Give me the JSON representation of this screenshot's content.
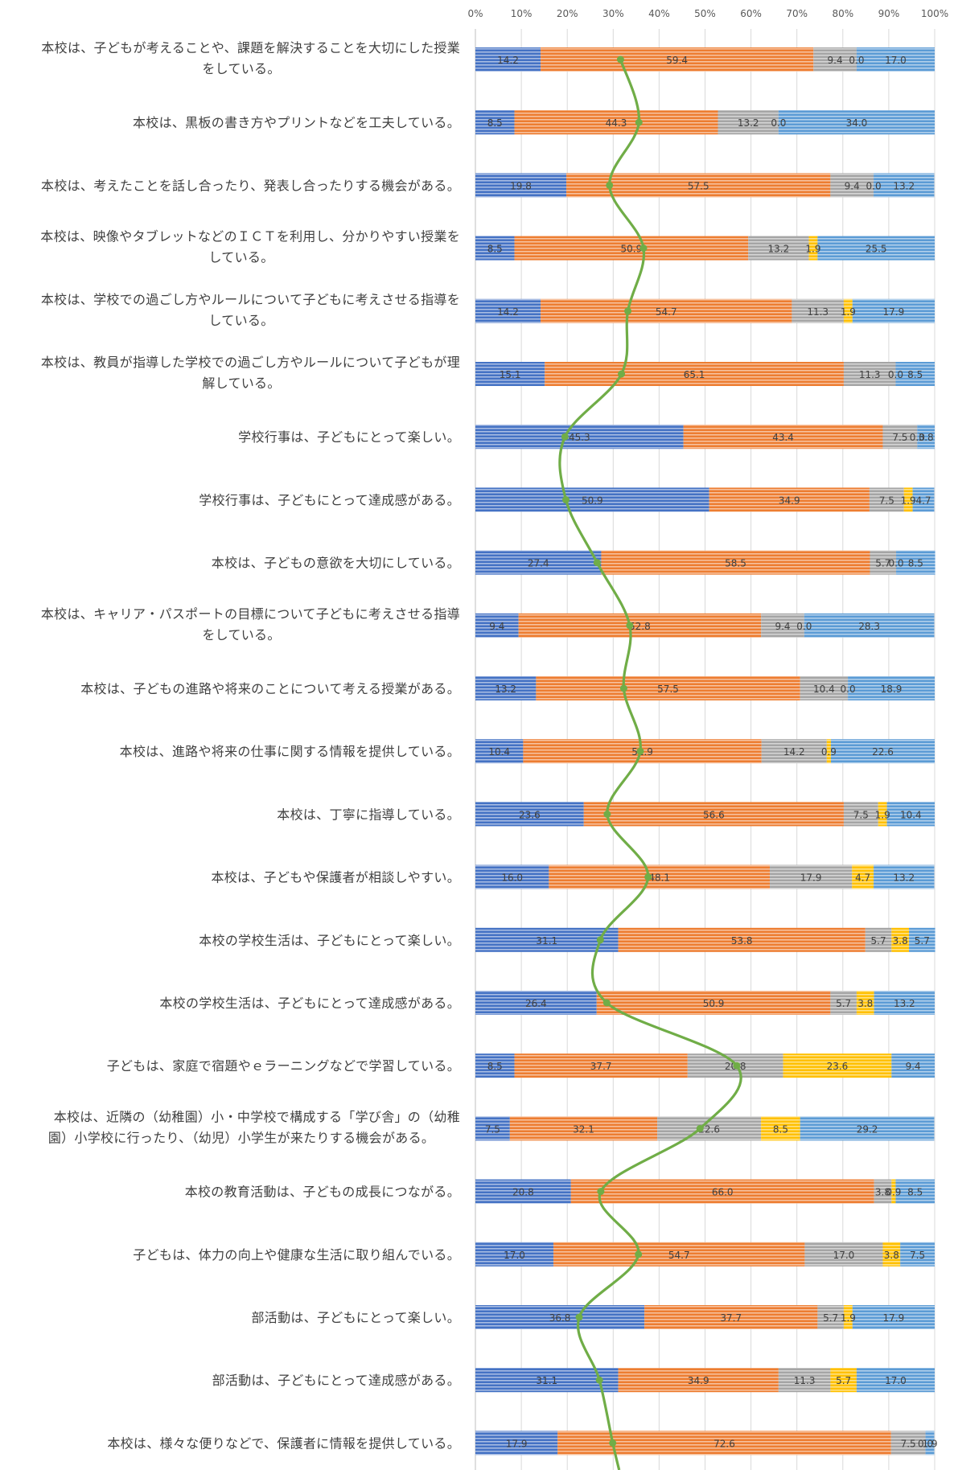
{
  "chart_data": {
    "type": "bar",
    "stacked": true,
    "orientation": "horizontal",
    "xlim": [
      0,
      100
    ],
    "x_ticks": [
      "0%",
      "10%",
      "20%",
      "30%",
      "40%",
      "50%",
      "60%",
      "70%",
      "80%",
      "90%",
      "100%"
    ],
    "grid": "vertical",
    "colors": [
      "#4472c4",
      "#ed7d31",
      "#a5a5a5",
      "#ffc000",
      "#5b9bd5"
    ],
    "line_color": "#70ad47",
    "categories": [
      [
        "本校は、子どもが考えることや、課題を解決することを大切にした授業",
        "をしている。"
      ],
      [
        "本校は、黒板の書き方やプリントなどを工夫している。"
      ],
      [
        "本校は、考えたことを話し合ったり、発表し合ったりする機会がある。"
      ],
      [
        "本校は、映像やタブレットなどのＩＣＴを利用し、分かりやすい授業を",
        "している。"
      ],
      [
        "本校は、学校での過ごし方やルールについて子どもに考えさせる指導を",
        "している。"
      ],
      [
        "本校は、教員が指導した学校での過ごし方やルールについて子どもが理",
        "解している。"
      ],
      [
        "学校行事は、子どもにとって楽しい。"
      ],
      [
        "学校行事は、子どもにとって達成感がある。"
      ],
      [
        "本校は、子どもの意欲を大切にしている。"
      ],
      [
        "本校は、キャリア・パスポートの目標について子どもに考えさせる指導",
        "をしている。"
      ],
      [
        "本校は、子どもの進路や将来のことについて考える授業がある。"
      ],
      [
        "本校は、進路や将来の仕事に関する情報を提供している。"
      ],
      [
        "本校は、丁寧に指導している。"
      ],
      [
        "本校は、子どもや保護者が相談しやすい。"
      ],
      [
        "本校の学校生活は、子どもにとって楽しい。"
      ],
      [
        "本校の学校生活は、子どもにとって達成感がある。"
      ],
      [
        "子どもは、家庭で宿題やｅラーニングなどで学習している。"
      ],
      [
        "本校は、近隣の（幼稚園）小・中学校で構成する「学び舎」の（幼稚",
        "園）小学校に行ったり、（幼児）小学生が来たりする機会がある。"
      ],
      [
        "本校の教育活動は、子どもの成長につながる。"
      ],
      [
        "子どもは、体力の向上や健康な生活に取り組んでいる。"
      ],
      [
        "部活動は、子どもにとって楽しい。"
      ],
      [
        "部活動は、子どもにとって達成感がある。"
      ],
      [
        "本校は、様々な便りなどで、保護者に情報を提供している。"
      ]
    ],
    "series": [
      {
        "values": [
          14.2,
          8.5,
          19.8,
          8.5,
          14.2,
          15.1,
          45.3,
          50.9,
          27.4,
          9.4,
          13.2,
          10.4,
          23.6,
          16.0,
          31.1,
          26.4,
          8.5,
          7.5,
          20.8,
          17.0,
          36.8,
          31.1,
          17.9
        ]
      },
      {
        "values": [
          59.4,
          44.3,
          57.5,
          50.9,
          54.7,
          65.1,
          43.4,
          34.9,
          58.5,
          52.8,
          57.5,
          51.9,
          56.6,
          48.1,
          53.8,
          50.9,
          37.7,
          32.1,
          66.0,
          54.7,
          37.7,
          34.9,
          72.6
        ]
      },
      {
        "values": [
          9.4,
          13.2,
          9.4,
          13.2,
          11.3,
          11.3,
          7.5,
          7.5,
          5.7,
          9.4,
          10.4,
          14.2,
          7.5,
          17.9,
          5.7,
          5.7,
          20.8,
          22.6,
          3.8,
          17.0,
          5.7,
          11.3,
          7.5
        ]
      },
      {
        "values": [
          0.0,
          0.0,
          0.0,
          1.9,
          1.9,
          0.0,
          0.0,
          1.9,
          0.0,
          0.0,
          0.0,
          0.9,
          1.9,
          4.7,
          3.8,
          3.8,
          23.6,
          8.5,
          0.9,
          3.8,
          1.9,
          5.7,
          0.0
        ]
      },
      {
        "values": [
          17.0,
          34.0,
          13.2,
          25.5,
          17.9,
          8.5,
          3.8,
          4.7,
          8.5,
          28.3,
          18.9,
          22.6,
          10.4,
          13.2,
          5.7,
          13.2,
          9.4,
          29.2,
          8.5,
          7.5,
          17.9,
          17.0,
          1.9
        ]
      }
    ],
    "data_labels": [
      [
        "14.2",
        "59.4",
        "9.4",
        "0.0",
        "17.0"
      ],
      [
        "8.5",
        "44.3",
        "13.2",
        "0.0",
        "34.0"
      ],
      [
        "19.8",
        "57.5",
        "9.4",
        "0.0",
        "13.2"
      ],
      [
        "8.5",
        "50.9",
        "13.2",
        "1.9",
        "25.5"
      ],
      [
        "14.2",
        "54.7",
        "11.3",
        "1.9",
        "17.9"
      ],
      [
        "15.1",
        "65.1",
        "11.3",
        "0.0",
        "8.5"
      ],
      [
        "45.3",
        "43.4",
        "7.5",
        "0.0",
        "3.8"
      ],
      [
        "50.9",
        "34.9",
        "7.5",
        "1.9",
        "4.7"
      ],
      [
        "27.4",
        "58.5",
        "5.7",
        "0.0",
        "8.5"
      ],
      [
        "9.4",
        "52.8",
        "9.4",
        "0.0",
        "28.3"
      ],
      [
        "13.2",
        "57.5",
        "10.4",
        "0.0",
        "18.9"
      ],
      [
        "10.4",
        "51.9",
        "14.2",
        "0.9",
        "22.6"
      ],
      [
        "23.6",
        "56.6",
        "7.5",
        "1.9",
        "10.4"
      ],
      [
        "16.0",
        "48.1",
        "17.9",
        "4.7",
        "13.2"
      ],
      [
        "31.1",
        "53.8",
        "5.7",
        "3.8",
        "5.7"
      ],
      [
        "26.4",
        "50.9",
        "5.7",
        "3.8",
        "13.2"
      ],
      [
        "8.5",
        "37.7",
        "20.8",
        "23.6",
        "9.4"
      ],
      [
        "7.5",
        "32.1",
        "22.6",
        "8.5",
        "29.2"
      ],
      [
        "20.8",
        "66.0",
        "3.8",
        "0.9",
        "8.5"
      ],
      [
        "17.0",
        "54.7",
        "17.0",
        "3.8",
        "7.5"
      ],
      [
        "36.8",
        "37.7",
        "5.7",
        "1.9",
        "17.9"
      ],
      [
        "31.1",
        "34.9",
        "11.3",
        "5.7",
        "17.0"
      ],
      [
        "17.9",
        "72.6",
        "7.5",
        "0.0",
        "1.9"
      ]
    ],
    "line_values": [
      31.6,
      35.6,
      29.2,
      36.6,
      33.2,
      31.8,
      19.5,
      19.7,
      26.5,
      33.6,
      32.3,
      35.9,
      28.7,
      37.6,
      27.2,
      28.6,
      56.9,
      48.9,
      27.3,
      35.5,
      22.6,
      27.0,
      29.9
    ]
  }
}
